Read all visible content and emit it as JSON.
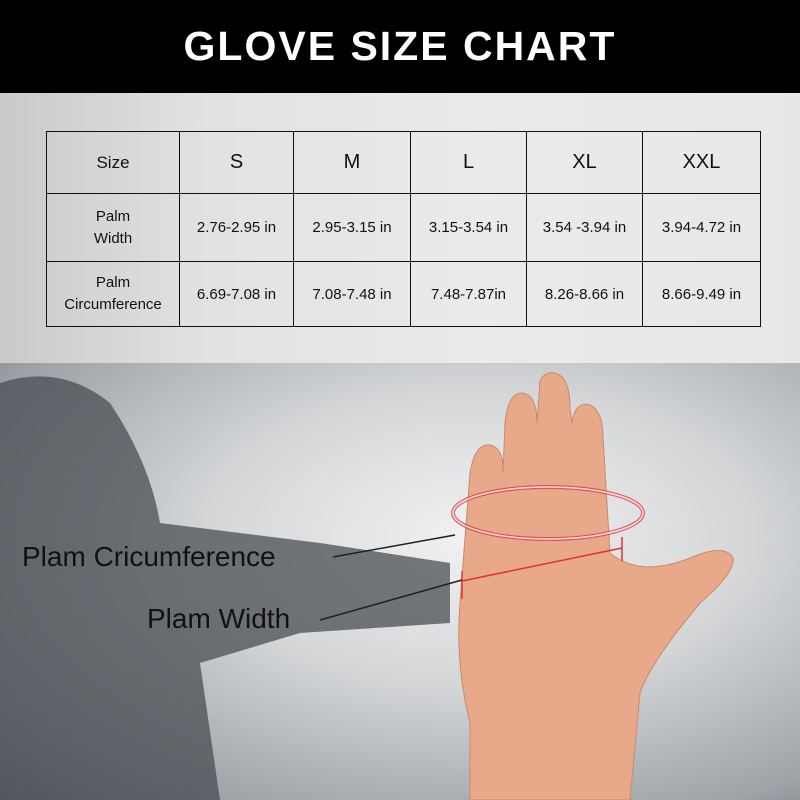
{
  "title": "GLOVE SIZE CHART",
  "table": {
    "header": [
      "Size",
      "S",
      "M",
      "L",
      "XL",
      "XXL"
    ],
    "rows": [
      {
        "label_line1": "Palm",
        "label_line2": "Width",
        "values": [
          "2.76-2.95 in",
          "2.95-3.15 in",
          "3.15-3.54 in",
          "3.54 -3.94 in",
          "3.94-4.72 in"
        ]
      },
      {
        "label_line1": "Palm",
        "label_line2": "Circumference",
        "values": [
          "6.69-7.08 in",
          "7.08-7.48 in",
          "7.48-7.87in",
          "8.26-8.66 in",
          "8.66-9.49  in"
        ]
      }
    ]
  },
  "annotations": {
    "circumference": "Plam Cricumference",
    "width": "Plam Width"
  },
  "colors": {
    "header_bg": "#000000",
    "measure_line": "#e0303a"
  }
}
